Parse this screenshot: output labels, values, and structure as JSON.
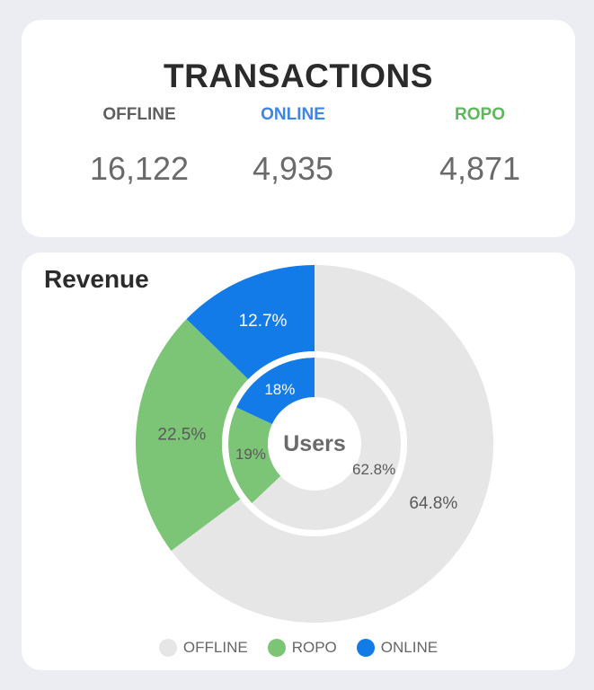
{
  "transactions": {
    "title": "TRANSACTIONS",
    "columns": [
      {
        "label": "OFFLINE",
        "value": "16,122",
        "color": "#5f5f5f"
      },
      {
        "label": "ONLINE",
        "value": "4,935",
        "color": "#3d85e6"
      },
      {
        "label": "ROPO",
        "value": "4,871",
        "color": "#5bb85b"
      }
    ]
  },
  "revenue": {
    "title": "Revenue"
  },
  "chart_data": {
    "type": "pie",
    "subtype": "nested-donut",
    "center_label": "Users",
    "rings": [
      {
        "name": "Revenue",
        "ring": "outer",
        "slices": [
          {
            "category": "OFFLINE",
            "value": 64.8,
            "label": "64.8%"
          },
          {
            "category": "ROPO",
            "value": 22.5,
            "label": "22.5%"
          },
          {
            "category": "ONLINE",
            "value": 12.7,
            "label": "12.7%"
          }
        ]
      },
      {
        "name": "Users",
        "ring": "inner",
        "slices": [
          {
            "category": "OFFLINE",
            "value": 62.8,
            "label": "62.8%"
          },
          {
            "category": "ROPO",
            "value": 19,
            "label": "19%"
          },
          {
            "category": "ONLINE",
            "value": 18,
            "label": "18%"
          }
        ]
      }
    ],
    "colors": {
      "OFFLINE": "#e6e6e6",
      "ROPO": "#7cc576",
      "ONLINE": "#137be8"
    },
    "label_colors": {
      "OFFLINE": "#5a5a5a",
      "ROPO": "#5a5a5a",
      "ONLINE": "#ffffff"
    },
    "legend": {
      "position": "bottom",
      "entries": [
        "OFFLINE",
        "ROPO",
        "ONLINE"
      ]
    }
  }
}
